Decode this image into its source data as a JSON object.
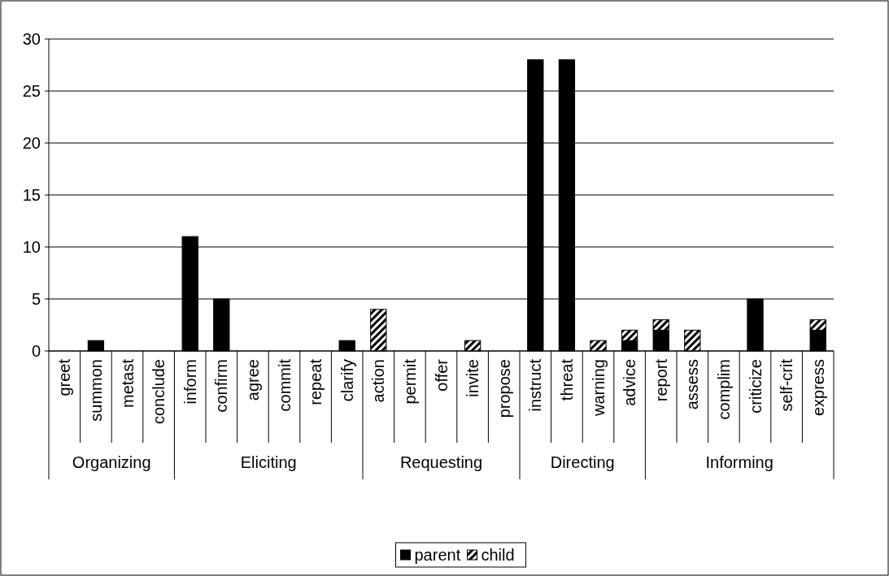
{
  "chart_data": {
    "type": "bar",
    "stacked": true,
    "categories": [
      "greet",
      "summon",
      "metast",
      "conclude",
      "inform",
      "confirm",
      "agree",
      "commit",
      "repeat",
      "clarify",
      "action",
      "permit",
      "offer",
      "invite",
      "propose",
      "instruct",
      "threat",
      "warning",
      "advice",
      "report",
      "assess",
      "complim",
      "criticize",
      "self-crit",
      "express"
    ],
    "series": [
      {
        "name": "parent",
        "color": "#000000",
        "values": [
          0,
          1,
          0,
          0,
          11,
          5,
          0,
          0,
          0,
          1,
          0,
          0,
          0,
          0,
          0,
          28,
          28,
          0,
          1,
          2,
          0,
          0,
          5,
          0,
          2
        ]
      },
      {
        "name": "child",
        "color": "#000000",
        "values": [
          0,
          0,
          0,
          0,
          0,
          0,
          0,
          0,
          0,
          0,
          4,
          0,
          0,
          1,
          0,
          0,
          0,
          1,
          1,
          1,
          2,
          0,
          0,
          0,
          1
        ]
      }
    ],
    "annotations": [
      "Organizing",
      "Eliciting",
      "Requesting",
      "Directing",
      "Informing"
    ],
    "ylim": [
      0,
      30
    ],
    "yticks": [
      0,
      5,
      10,
      15,
      20,
      25,
      30
    ],
    "grid": "y",
    "legend": "bottom"
  }
}
